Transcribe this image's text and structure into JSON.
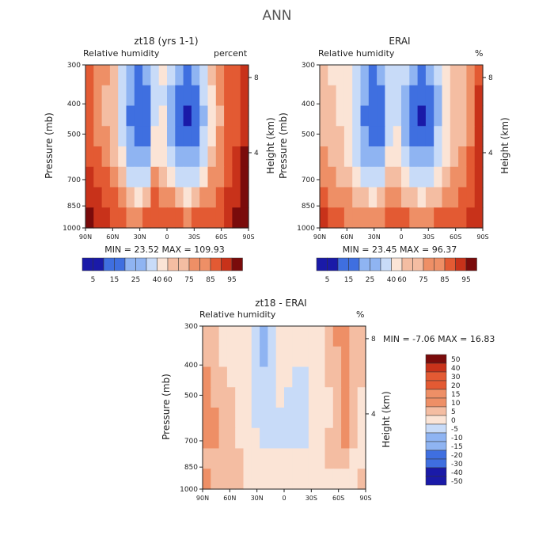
{
  "page_title": "ANN",
  "colors": {
    "lo3": "#1a1aa8",
    "lo2": "#3f6fe0",
    "lo1": "#8fb4f2",
    "lo0": "#c8dbf8",
    "neutral": "#fbe4d6",
    "hi1": "#f4bda2",
    "hi2": "#ee8f66",
    "hi3": "#e35a33",
    "hi4": "#c8321a",
    "hi5": "#7a0b0b"
  },
  "chart_data": [
    {
      "type": "heatmap",
      "title": "zt18 (yrs 1-1)",
      "subtitle": "Relative humidity",
      "units": "percent",
      "ylabel": "Pressure (mb)",
      "ylabel_right": "Height (km)",
      "x_ticks": [
        "90N",
        "60N",
        "30N",
        "0",
        "30S",
        "60S",
        "90S"
      ],
      "y_ticks": [
        "300",
        "400",
        "500",
        "700",
        "850",
        "1000"
      ],
      "y_right_ticks": [
        "8",
        "4"
      ],
      "stats": "MIN = 23.52 MAX = 109.93",
      "colorbar_labels": [
        "5",
        "15",
        "25",
        "40",
        "60",
        "75",
        "85",
        "95"
      ],
      "grid_rows": [
        [
          80,
          72,
          70,
          64,
          50,
          40,
          32,
          35,
          45,
          55,
          48,
          36,
          32,
          38,
          50,
          62,
          70,
          80,
          82,
          90
        ],
        [
          82,
          74,
          68,
          62,
          48,
          35,
          28,
          30,
          48,
          52,
          40,
          30,
          26,
          32,
          46,
          60,
          70,
          78,
          85,
          92
        ],
        [
          82,
          74,
          68,
          62,
          48,
          34,
          26,
          28,
          50,
          55,
          38,
          26,
          22,
          28,
          44,
          58,
          68,
          78,
          85,
          92
        ],
        [
          82,
          76,
          70,
          64,
          52,
          38,
          30,
          32,
          55,
          58,
          44,
          32,
          28,
          34,
          48,
          60,
          70,
          78,
          85,
          92
        ],
        [
          84,
          78,
          74,
          68,
          58,
          44,
          36,
          40,
          60,
          60,
          52,
          40,
          36,
          40,
          52,
          64,
          72,
          80,
          86,
          94
        ],
        [
          86,
          82,
          78,
          74,
          64,
          54,
          46,
          52,
          70,
          66,
          60,
          52,
          48,
          52,
          60,
          70,
          76,
          82,
          88,
          96
        ],
        [
          90,
          86,
          82,
          78,
          72,
          64,
          58,
          66,
          78,
          74,
          72,
          64,
          60,
          64,
          70,
          76,
          80,
          86,
          92,
          98
        ],
        [
          96,
          92,
          86,
          82,
          80,
          76,
          72,
          78,
          84,
          82,
          84,
          78,
          76,
          78,
          82,
          84,
          84,
          90,
          96,
          100
        ]
      ]
    },
    {
      "type": "heatmap",
      "title": "ERAI",
      "subtitle": "Relative humidity",
      "units": "%",
      "ylabel": "Pressure (mb)",
      "ylabel_right": "Height (km)",
      "x_ticks": [
        "90N",
        "60N",
        "30N",
        "0",
        "30S",
        "60S",
        "90S"
      ],
      "y_ticks": [
        "300",
        "400",
        "500",
        "700",
        "850",
        "1000"
      ],
      "y_right_ticks": [
        "8",
        "4"
      ],
      "stats": "MIN = 23.45 MAX = 96.37",
      "colorbar_labels": [
        "5",
        "15",
        "25",
        "40",
        "60",
        "75",
        "85",
        "95"
      ],
      "grid_rows": [
        [
          64,
          60,
          60,
          56,
          48,
          40,
          34,
          36,
          46,
          52,
          46,
          38,
          34,
          38,
          50,
          58,
          62,
          66,
          72,
          84
        ],
        [
          66,
          62,
          60,
          56,
          46,
          36,
          30,
          32,
          48,
          50,
          40,
          30,
          28,
          32,
          44,
          56,
          62,
          66,
          74,
          86
        ],
        [
          66,
          62,
          60,
          56,
          46,
          34,
          28,
          30,
          50,
          52,
          38,
          28,
          24,
          28,
          42,
          56,
          62,
          66,
          74,
          86
        ],
        [
          68,
          64,
          62,
          58,
          50,
          38,
          30,
          34,
          54,
          56,
          42,
          32,
          28,
          32,
          46,
          58,
          64,
          68,
          76,
          88
        ],
        [
          70,
          66,
          64,
          60,
          54,
          44,
          36,
          40,
          58,
          58,
          50,
          40,
          36,
          40,
          50,
          60,
          66,
          70,
          78,
          90
        ],
        [
          74,
          70,
          68,
          64,
          60,
          52,
          46,
          52,
          66,
          64,
          58,
          50,
          46,
          50,
          58,
          64,
          70,
          74,
          80,
          90
        ],
        [
          80,
          76,
          74,
          70,
          68,
          62,
          58,
          64,
          74,
          72,
          68,
          62,
          58,
          62,
          68,
          72,
          74,
          78,
          84,
          92
        ],
        [
          86,
          82,
          78,
          76,
          76,
          74,
          70,
          74,
          80,
          78,
          80,
          76,
          74,
          76,
          78,
          80,
          80,
          82,
          86,
          92
        ]
      ]
    },
    {
      "type": "heatmap",
      "title": "zt18 - ERAI",
      "subtitle": "Relative humidity",
      "units": "%",
      "ylabel": "Pressure (mb)",
      "ylabel_right": "Height (km)",
      "x_ticks": [
        "90N",
        "60N",
        "30N",
        "0",
        "30S",
        "60S",
        "90S"
      ],
      "y_ticks": [
        "300",
        "400",
        "500",
        "700",
        "850",
        "1000"
      ],
      "y_right_ticks": [
        "8",
        "4"
      ],
      "stats": "MIN = -7.06 MAX = 16.83",
      "colorbar_labels": [
        "50",
        "40",
        "30",
        "20",
        "15",
        "10",
        "5",
        "0",
        "-5",
        "-10",
        "-15",
        "-20",
        "-30",
        "-40",
        "-50"
      ],
      "grid_rows": [
        [
          8,
          6,
          4,
          4,
          2,
          0,
          -2,
          -6,
          -4,
          2,
          4,
          2,
          2,
          4,
          4,
          6,
          10,
          12,
          8,
          6
        ],
        [
          8,
          6,
          4,
          4,
          2,
          0,
          -2,
          -6,
          -4,
          2,
          2,
          0,
          0,
          2,
          4,
          6,
          8,
          10,
          8,
          6
        ],
        [
          10,
          8,
          6,
          4,
          2,
          0,
          -2,
          -4,
          -2,
          2,
          0,
          -2,
          -2,
          0,
          4,
          6,
          8,
          10,
          8,
          6
        ],
        [
          10,
          8,
          6,
          6,
          2,
          0,
          -2,
          -4,
          -2,
          0,
          -2,
          -2,
          -2,
          0,
          2,
          4,
          8,
          10,
          8,
          4
        ],
        [
          12,
          10,
          8,
          6,
          4,
          0,
          -2,
          -4,
          -2,
          -2,
          -2,
          -2,
          -2,
          0,
          2,
          4,
          8,
          10,
          8,
          4
        ],
        [
          10,
          10,
          8,
          6,
          4,
          2,
          0,
          -2,
          -2,
          -2,
          -2,
          -2,
          -2,
          0,
          2,
          6,
          8,
          10,
          6,
          4
        ],
        [
          8,
          8,
          6,
          6,
          6,
          4,
          2,
          2,
          2,
          2,
          2,
          0,
          0,
          2,
          4,
          6,
          6,
          8,
          4,
          2
        ],
        [
          10,
          8,
          6,
          6,
          6,
          4,
          2,
          2,
          4,
          4,
          2,
          2,
          2,
          2,
          4,
          4,
          2,
          2,
          4,
          6
        ]
      ]
    }
  ]
}
